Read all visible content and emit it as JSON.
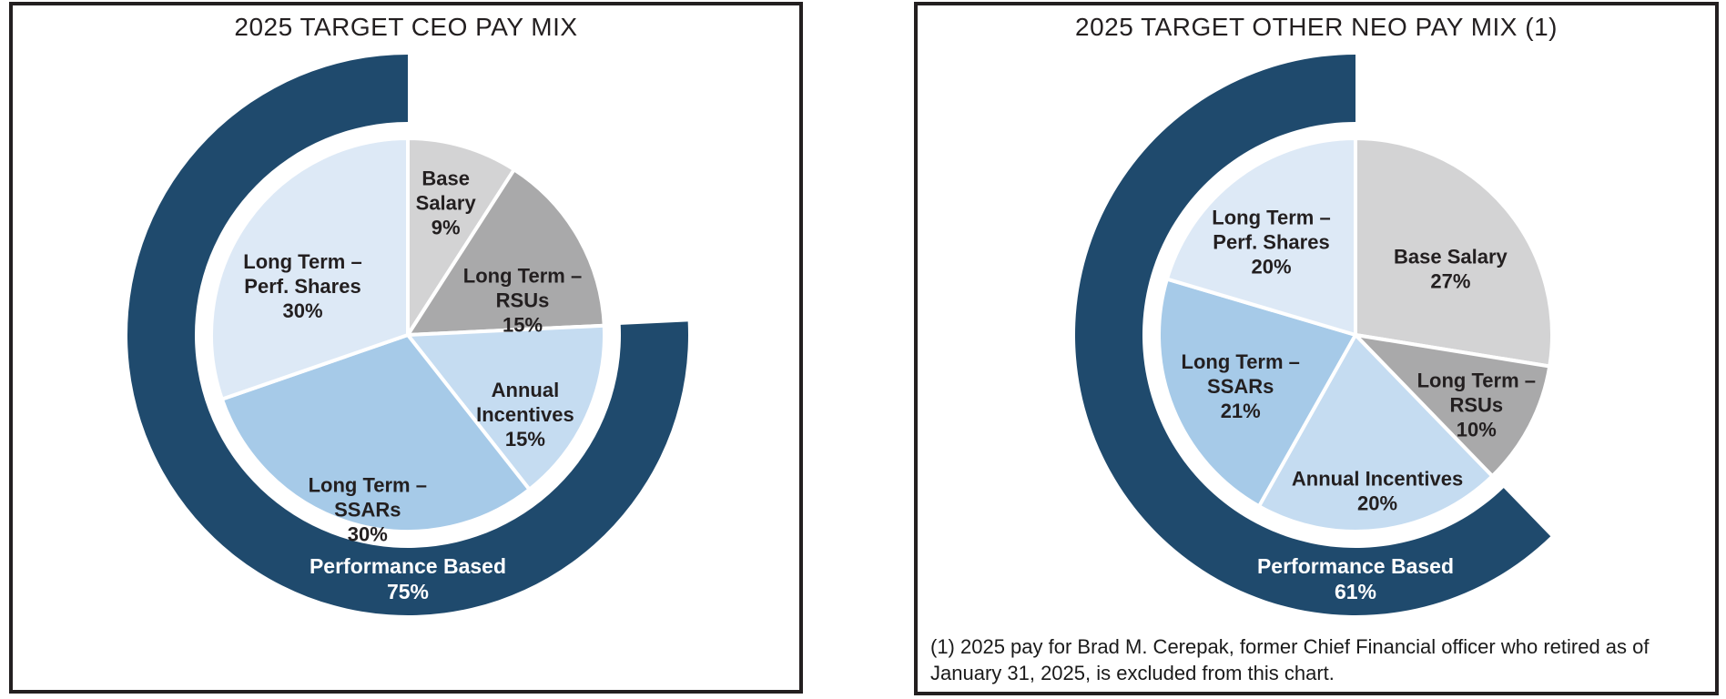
{
  "chart_data": [
    {
      "type": "pie",
      "title": "2025 TARGET CEO PAY MIX",
      "values_unit": "%",
      "direction": "clockwise",
      "start_angle_deg": 0,
      "slices": [
        {
          "label": "Base Salary",
          "pct": 9,
          "display_lines": [
            "Base",
            "Salary",
            "9%"
          ],
          "color": "#D3D3D4",
          "performance_based": false,
          "label_angle": 16,
          "label_r": 0.7
        },
        {
          "label": "Long Term – RSUs",
          "pct": 15,
          "display_lines": [
            "Long Term –",
            "RSUs",
            "15%"
          ],
          "color": "#A9A9AA",
          "performance_based": false,
          "label_angle": 73,
          "label_r": 0.61
        },
        {
          "label": "Annual Incentives",
          "pct": 15,
          "display_lines": [
            "Annual",
            "Incentives",
            "15%"
          ],
          "color": "#C5DCF1",
          "performance_based": true,
          "label_angle": 124,
          "label_r": 0.72
        },
        {
          "label": "Long Term – SSARs",
          "pct": 30,
          "display_lines": [
            "Long Term –",
            "SSARs",
            "30%"
          ],
          "color": "#A6CAE8",
          "performance_based": true,
          "label_angle": 193,
          "label_r": 0.91
        },
        {
          "label": "Long Term – Perf. Shares",
          "pct": 30,
          "display_lines": [
            "Long Term –",
            "Perf. Shares",
            "30%"
          ],
          "color": "#DDE9F6",
          "performance_based": true,
          "label_angle": 295,
          "label_r": 0.59
        }
      ],
      "outer_ring": {
        "label_lines": [
          "Performance Based",
          "75%"
        ],
        "pct": 75,
        "color": "#1F4A6D",
        "covers": "performance_based_slices",
        "ends_at_deg": 360
      },
      "footnote_lines": []
    },
    {
      "type": "pie",
      "title": "2025 TARGET OTHER NEO PAY MIX (1)",
      "values_unit": "%",
      "direction": "clockwise",
      "start_angle_deg": 0,
      "slices": [
        {
          "label": "Base Salary",
          "pct": 27,
          "display_lines": [
            "Base Salary",
            "27%"
          ],
          "color": "#D3D3D4",
          "performance_based": false,
          "label_angle": 55,
          "label_r": 0.59
        },
        {
          "label": "Long Term – RSUs",
          "pct": 10,
          "display_lines": [
            "Long Term –",
            "RSUs",
            "10%"
          ],
          "color": "#A9A9AA",
          "performance_based": false,
          "label_angle": 120,
          "label_r": 0.71
        },
        {
          "label": "Annual Incentives",
          "pct": 20,
          "display_lines": [
            "Annual Incentives",
            "20%"
          ],
          "color": "#C5DCF1",
          "performance_based": true,
          "label_angle": 172,
          "label_r": 0.8
        },
        {
          "label": "Long Term – SSARs",
          "pct": 21,
          "display_lines": [
            "Long Term –",
            "SSARs",
            "21%"
          ],
          "color": "#A6CAE8",
          "performance_based": true,
          "label_angle": 246,
          "label_r": 0.64
        },
        {
          "label": "Long Term – Perf. Shares",
          "pct": 20,
          "display_lines": [
            "Long Term –",
            "Perf. Shares",
            "20%"
          ],
          "color": "#DDE9F6",
          "performance_based": true,
          "label_angle": 318,
          "label_r": 0.64
        }
      ],
      "outer_ring": {
        "label_lines": [
          "Performance Based",
          "61%"
        ],
        "pct": 61,
        "color": "#1F4A6D",
        "covers": "performance_based_slices",
        "ends_at_deg": 360
      },
      "footnote_lines": [
        "(1) 2025 pay for Brad M. Cerepak, former Chief Financial officer who retired as of",
        "January 31, 2025, is excluded from this chart."
      ]
    }
  ]
}
